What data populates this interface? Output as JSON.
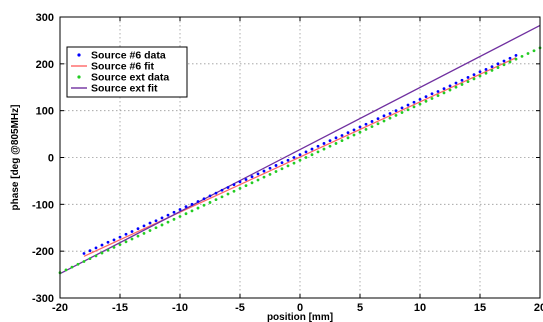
{
  "chart_data": {
    "type": "scatter",
    "xlabel": "position [mm]",
    "ylabel": "phase [deg @805MHz]",
    "xlim": [
      -20,
      20
    ],
    "ylim": [
      -300,
      300
    ],
    "xticks": [
      -20,
      -15,
      -10,
      -5,
      0,
      5,
      10,
      15,
      20
    ],
    "yticks": [
      -300,
      -200,
      -100,
      0,
      100,
      200,
      300
    ],
    "x_tick_labels": [
      "-20",
      "-15",
      "-10",
      "-5",
      "0",
      "5",
      "10",
      "15",
      "20"
    ],
    "y_tick_labels": [
      "-300",
      "-200",
      "-100",
      "0",
      "100",
      "200",
      "300"
    ],
    "grid": true,
    "legend_position": "top-left",
    "series": [
      {
        "name": "Source #6 data",
        "kind": "points",
        "color": "#0000ff",
        "x": [
          -18,
          -17.5,
          -17,
          -16.5,
          -16,
          -15.5,
          -15,
          -14.5,
          -14,
          -13.5,
          -13,
          -12.5,
          -12,
          -11.5,
          -11,
          -10.5,
          -10,
          -9.5,
          -9,
          -8.5,
          -8,
          -7.5,
          -7,
          -6.5,
          -6,
          -5.5,
          -5,
          -4.5,
          -4,
          -3.5,
          -3,
          -2.5,
          -2,
          -1.5,
          -1,
          -0.5,
          0,
          0.5,
          1,
          1.5,
          2,
          2.5,
          3,
          3.5,
          4,
          4.5,
          5,
          5.5,
          6,
          6.5,
          7,
          7.5,
          8,
          8.5,
          9,
          9.5,
          10,
          10.5,
          11,
          11.5,
          12,
          12.5,
          13,
          13.5,
          14,
          14.5,
          15,
          15.5,
          16,
          16.5,
          17,
          17.5,
          18
        ],
        "y": [
          -205,
          -199,
          -193,
          -187,
          -181,
          -176,
          -170,
          -164,
          -158,
          -152,
          -146,
          -140,
          -135,
          -129,
          -123,
          -117,
          -111,
          -105,
          -100,
          -94,
          -88,
          -82,
          -76,
          -70,
          -64,
          -58,
          -52,
          -47,
          -41,
          -35,
          -29,
          -23,
          -17,
          -11,
          -6,
          0,
          6,
          12,
          18,
          24,
          30,
          36,
          42,
          47,
          53,
          59,
          65,
          71,
          77,
          83,
          89,
          94,
          100,
          106,
          112,
          118,
          124,
          130,
          136,
          141,
          147,
          153,
          159,
          165,
          171,
          177,
          183,
          188,
          194,
          200,
          206,
          212,
          218
        ]
      },
      {
        "name": "Source #6 fit",
        "kind": "line",
        "color": "#ff6666",
        "x": [
          -18,
          18
        ],
        "y": [
          -211,
          213
        ]
      },
      {
        "name": "Source ext data",
        "kind": "points",
        "color": "#22cc22",
        "x": [
          -20,
          -19.5,
          -19,
          -18.5,
          -18,
          -17.5,
          -17,
          -16.5,
          -16,
          -15.5,
          -15,
          -14.5,
          -14,
          -13.5,
          -13,
          -12.5,
          -12,
          -11.5,
          -11,
          -10.5,
          -10,
          -9.5,
          -9,
          -8.5,
          -8,
          -7.5,
          -7,
          -6.5,
          -6,
          -5.5,
          -5,
          -4.5,
          -4,
          -3.5,
          -3,
          -2.5,
          -2,
          -1.5,
          -1,
          -0.5,
          0,
          0.5,
          1,
          1.5,
          2,
          2.5,
          3,
          3.5,
          4,
          4.5,
          5,
          5.5,
          6,
          6.5,
          7,
          7.5,
          8,
          8.5,
          9,
          9.5,
          10,
          10.5,
          11,
          11.5,
          12,
          12.5,
          13,
          13.5,
          14,
          14.5,
          15,
          15.5,
          16,
          16.5,
          17,
          17.5,
          18,
          18.5,
          19,
          19.5,
          20
        ],
        "y": [
          -246,
          -240,
          -234,
          -228,
          -222,
          -216,
          -210,
          -204,
          -198,
          -192,
          -186,
          -180,
          -174,
          -168,
          -162,
          -156,
          -150,
          -144,
          -138,
          -132,
          -126,
          -120,
          -114,
          -108,
          -102,
          -96,
          -90,
          -84,
          -78,
          -72,
          -66,
          -60,
          -54,
          -48,
          -42,
          -36,
          -30,
          -24,
          -18,
          -12,
          -6,
          0,
          6,
          12,
          18,
          24,
          30,
          36,
          42,
          48,
          54,
          60,
          66,
          72,
          78,
          84,
          90,
          96,
          102,
          108,
          114,
          120,
          126,
          132,
          138,
          144,
          150,
          156,
          162,
          168,
          174,
          180,
          186,
          192,
          198,
          204,
          210,
          216,
          222,
          228,
          234
        ]
      },
      {
        "name": "Source ext fit",
        "kind": "line",
        "color": "#7030a0",
        "x": [
          -20,
          20
        ],
        "y": [
          -248,
          282
        ]
      }
    ]
  }
}
